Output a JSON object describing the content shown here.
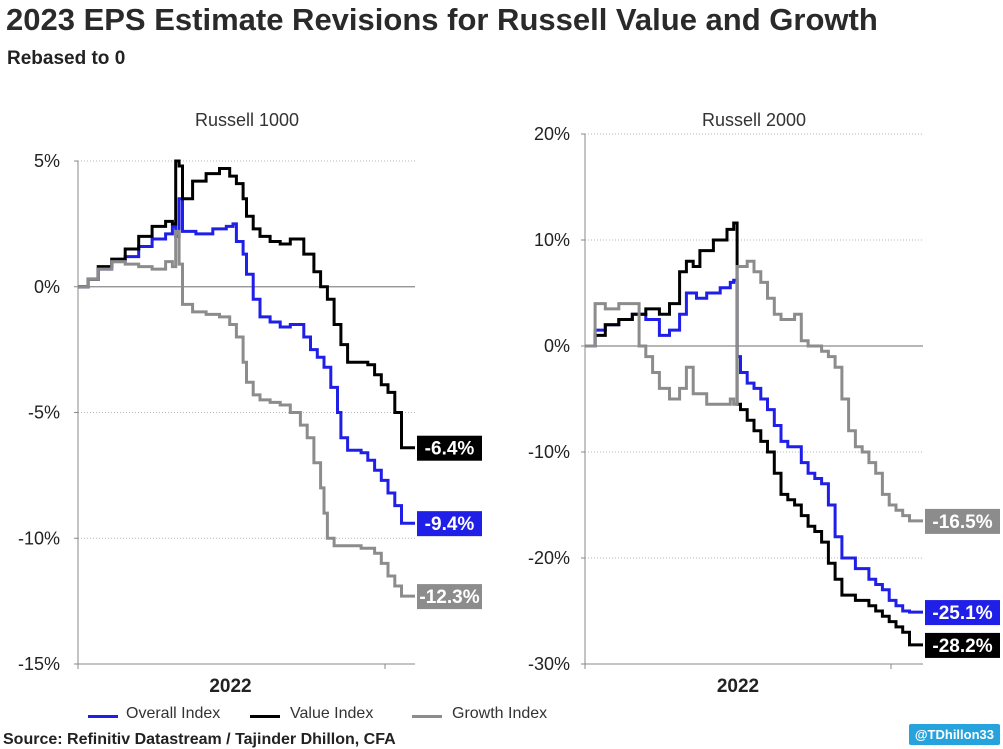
{
  "title": "2023 EPS Estimate Revisions for Russell Value and Growth",
  "subtitle": "Rebased to 0",
  "source": "Source: Refinitiv Datastream / Tajinder Dhillon, CFA",
  "handle": "@TDhillon33",
  "legend": [
    {
      "name": "Overall Index",
      "color": "#1f1fe8"
    },
    {
      "name": "Value Index",
      "color": "#000000"
    },
    {
      "name": "Growth Index",
      "color": "#8c8c8c"
    }
  ],
  "chart_data": [
    {
      "type": "line",
      "panel_title": "Russell 1000",
      "x_label": "2022",
      "x_range": [
        0,
        1
      ],
      "ylim": [
        -15,
        5
      ],
      "yticks": [
        5,
        0,
        -5,
        -10,
        -15
      ],
      "ytick_labels": [
        "5%",
        "0%",
        "-5%",
        "-10%",
        "-15%"
      ],
      "grid": "horizontal dotted",
      "zero_line": true,
      "series": [
        {
          "name": "Overall Index",
          "color": "#1f1fe8",
          "end_label": "-9.4%",
          "points": [
            [
              0,
              0
            ],
            [
              0.03,
              0.3
            ],
            [
              0.06,
              0.7
            ],
            [
              0.1,
              1.0
            ],
            [
              0.14,
              1.2
            ],
            [
              0.18,
              1.6
            ],
            [
              0.22,
              1.9
            ],
            [
              0.26,
              2.1
            ],
            [
              0.28,
              2.4
            ],
            [
              0.29,
              2.0
            ],
            [
              0.3,
              3.5
            ],
            [
              0.31,
              2.2
            ],
            [
              0.35,
              2.1
            ],
            [
              0.4,
              2.3
            ],
            [
              0.44,
              2.4
            ],
            [
              0.46,
              2.5
            ],
            [
              0.47,
              1.8
            ],
            [
              0.49,
              1.3
            ],
            [
              0.5,
              0.5
            ],
            [
              0.52,
              -0.5
            ],
            [
              0.54,
              -1.2
            ],
            [
              0.57,
              -1.4
            ],
            [
              0.6,
              -1.6
            ],
            [
              0.63,
              -1.5
            ],
            [
              0.66,
              -1.5
            ],
            [
              0.67,
              -2.0
            ],
            [
              0.69,
              -2.5
            ],
            [
              0.71,
              -2.8
            ],
            [
              0.73,
              -3.2
            ],
            [
              0.75,
              -4.0
            ],
            [
              0.77,
              -5.0
            ],
            [
              0.78,
              -6.0
            ],
            [
              0.8,
              -6.5
            ],
            [
              0.84,
              -6.6
            ],
            [
              0.86,
              -6.9
            ],
            [
              0.88,
              -7.3
            ],
            [
              0.9,
              -7.7
            ],
            [
              0.92,
              -8.2
            ],
            [
              0.94,
              -8.7
            ],
            [
              0.96,
              -9.4
            ],
            [
              1,
              -9.4
            ]
          ]
        },
        {
          "name": "Value Index",
          "color": "#000000",
          "end_label": "-6.4%",
          "points": [
            [
              0,
              0
            ],
            [
              0.03,
              0.3
            ],
            [
              0.06,
              0.8
            ],
            [
              0.1,
              1.1
            ],
            [
              0.14,
              1.5
            ],
            [
              0.18,
              2.0
            ],
            [
              0.22,
              2.4
            ],
            [
              0.26,
              2.6
            ],
            [
              0.28,
              2.5
            ],
            [
              0.29,
              5.0
            ],
            [
              0.3,
              4.8
            ],
            [
              0.31,
              3.5
            ],
            [
              0.34,
              4.2
            ],
            [
              0.38,
              4.5
            ],
            [
              0.42,
              4.7
            ],
            [
              0.45,
              4.4
            ],
            [
              0.47,
              4.1
            ],
            [
              0.49,
              3.5
            ],
            [
              0.5,
              2.8
            ],
            [
              0.52,
              2.3
            ],
            [
              0.54,
              2.0
            ],
            [
              0.57,
              1.8
            ],
            [
              0.6,
              1.7
            ],
            [
              0.63,
              1.9
            ],
            [
              0.66,
              1.9
            ],
            [
              0.67,
              1.3
            ],
            [
              0.7,
              0.6
            ],
            [
              0.72,
              0.0
            ],
            [
              0.74,
              -0.5
            ],
            [
              0.76,
              -1.5
            ],
            [
              0.78,
              -2.3
            ],
            [
              0.8,
              -3.0
            ],
            [
              0.84,
              -3.0
            ],
            [
              0.86,
              -3.1
            ],
            [
              0.88,
              -3.5
            ],
            [
              0.9,
              -3.9
            ],
            [
              0.92,
              -4.2
            ],
            [
              0.94,
              -5.0
            ],
            [
              0.96,
              -6.4
            ],
            [
              1,
              -6.4
            ]
          ]
        },
        {
          "name": "Growth Index",
          "color": "#8c8c8c",
          "end_label": "-12.3%",
          "points": [
            [
              0,
              0
            ],
            [
              0.03,
              0.3
            ],
            [
              0.06,
              0.7
            ],
            [
              0.1,
              1.0
            ],
            [
              0.14,
              0.9
            ],
            [
              0.18,
              0.8
            ],
            [
              0.22,
              0.7
            ],
            [
              0.26,
              1.0
            ],
            [
              0.28,
              0.8
            ],
            [
              0.29,
              2.2
            ],
            [
              0.3,
              0.9
            ],
            [
              0.31,
              -0.7
            ],
            [
              0.34,
              -1.0
            ],
            [
              0.38,
              -1.1
            ],
            [
              0.42,
              -1.2
            ],
            [
              0.45,
              -1.5
            ],
            [
              0.47,
              -2.0
            ],
            [
              0.49,
              -3.0
            ],
            [
              0.5,
              -3.8
            ],
            [
              0.52,
              -4.3
            ],
            [
              0.54,
              -4.5
            ],
            [
              0.57,
              -4.6
            ],
            [
              0.6,
              -4.7
            ],
            [
              0.63,
              -5.0
            ],
            [
              0.66,
              -5.5
            ],
            [
              0.68,
              -6.0
            ],
            [
              0.7,
              -7.0
            ],
            [
              0.72,
              -8.0
            ],
            [
              0.73,
              -9.0
            ],
            [
              0.74,
              -10.0
            ],
            [
              0.76,
              -10.3
            ],
            [
              0.8,
              -10.3
            ],
            [
              0.84,
              -10.4
            ],
            [
              0.88,
              -10.6
            ],
            [
              0.9,
              -11.0
            ],
            [
              0.92,
              -11.5
            ],
            [
              0.94,
              -11.9
            ],
            [
              0.96,
              -12.3
            ],
            [
              1,
              -12.3
            ]
          ]
        }
      ]
    },
    {
      "type": "line",
      "panel_title": "Russell 2000",
      "x_label": "2022",
      "x_range": [
        0,
        1
      ],
      "ylim": [
        -30,
        20
      ],
      "yticks": [
        20,
        10,
        0,
        -10,
        -20,
        -30
      ],
      "ytick_labels": [
        "20%",
        "10%",
        "0%",
        "-10%",
        "-20%",
        "-30%"
      ],
      "grid": "horizontal dotted",
      "zero_line": true,
      "series": [
        {
          "name": "Overall Index",
          "color": "#1f1fe8",
          "end_label": "-25.1%",
          "points": [
            [
              0,
              0
            ],
            [
              0.03,
              1.5
            ],
            [
              0.06,
              2.0
            ],
            [
              0.1,
              2.5
            ],
            [
              0.14,
              3.0
            ],
            [
              0.18,
              2.5
            ],
            [
              0.22,
              1.0
            ],
            [
              0.25,
              1.5
            ],
            [
              0.28,
              3.0
            ],
            [
              0.3,
              5.0
            ],
            [
              0.33,
              4.5
            ],
            [
              0.36,
              5.0
            ],
            [
              0.4,
              5.5
            ],
            [
              0.43,
              6.0
            ],
            [
              0.44,
              6.2
            ],
            [
              0.45,
              -1.0
            ],
            [
              0.46,
              -2.5
            ],
            [
              0.48,
              -3.5
            ],
            [
              0.5,
              -4.0
            ],
            [
              0.52,
              -5.0
            ],
            [
              0.54,
              -6.0
            ],
            [
              0.56,
              -7.5
            ],
            [
              0.58,
              -9.0
            ],
            [
              0.6,
              -9.5
            ],
            [
              0.62,
              -9.5
            ],
            [
              0.64,
              -11.0
            ],
            [
              0.66,
              -12.0
            ],
            [
              0.68,
              -12.5
            ],
            [
              0.7,
              -13.0
            ],
            [
              0.72,
              -15.0
            ],
            [
              0.74,
              -18.0
            ],
            [
              0.76,
              -20.0
            ],
            [
              0.8,
              -21.0
            ],
            [
              0.84,
              -22.0
            ],
            [
              0.86,
              -22.5
            ],
            [
              0.88,
              -23.0
            ],
            [
              0.9,
              -24.0
            ],
            [
              0.92,
              -24.5
            ],
            [
              0.94,
              -25.0
            ],
            [
              0.96,
              -25.1
            ],
            [
              1,
              -25.1
            ]
          ]
        },
        {
          "name": "Value Index",
          "color": "#000000",
          "end_label": "-28.2%",
          "points": [
            [
              0,
              0
            ],
            [
              0.03,
              1.0
            ],
            [
              0.06,
              2.0
            ],
            [
              0.1,
              2.5
            ],
            [
              0.14,
              3.0
            ],
            [
              0.18,
              3.5
            ],
            [
              0.22,
              3.0
            ],
            [
              0.25,
              4.0
            ],
            [
              0.28,
              7.0
            ],
            [
              0.3,
              8.0
            ],
            [
              0.32,
              7.5
            ],
            [
              0.34,
              9.0
            ],
            [
              0.38,
              10.0
            ],
            [
              0.42,
              11.0
            ],
            [
              0.44,
              11.6
            ],
            [
              0.45,
              -5.5
            ],
            [
              0.46,
              -6.0
            ],
            [
              0.48,
              -7.0
            ],
            [
              0.5,
              -8.0
            ],
            [
              0.52,
              -9.0
            ],
            [
              0.54,
              -10.0
            ],
            [
              0.56,
              -12.0
            ],
            [
              0.58,
              -14.0
            ],
            [
              0.6,
              -14.5
            ],
            [
              0.62,
              -15.0
            ],
            [
              0.64,
              -16.0
            ],
            [
              0.66,
              -17.0
            ],
            [
              0.68,
              -17.5
            ],
            [
              0.7,
              -18.5
            ],
            [
              0.72,
              -20.5
            ],
            [
              0.74,
              -22.0
            ],
            [
              0.76,
              -23.5
            ],
            [
              0.8,
              -24.0
            ],
            [
              0.84,
              -24.5
            ],
            [
              0.86,
              -25.0
            ],
            [
              0.88,
              -25.5
            ],
            [
              0.9,
              -26.0
            ],
            [
              0.92,
              -26.5
            ],
            [
              0.94,
              -27.0
            ],
            [
              0.96,
              -28.2
            ],
            [
              1,
              -28.2
            ]
          ]
        },
        {
          "name": "Growth Index",
          "color": "#8c8c8c",
          "end_label": "-16.5%",
          "points": [
            [
              0,
              0
            ],
            [
              0.03,
              4.0
            ],
            [
              0.06,
              3.5
            ],
            [
              0.1,
              4.0
            ],
            [
              0.14,
              4.0
            ],
            [
              0.16,
              0.0
            ],
            [
              0.18,
              -1.0
            ],
            [
              0.2,
              -2.5
            ],
            [
              0.22,
              -4.0
            ],
            [
              0.25,
              -5.0
            ],
            [
              0.28,
              -4.0
            ],
            [
              0.3,
              -2.0
            ],
            [
              0.32,
              -4.5
            ],
            [
              0.36,
              -5.5
            ],
            [
              0.4,
              -5.5
            ],
            [
              0.43,
              -5.0
            ],
            [
              0.44,
              -5.5
            ],
            [
              0.45,
              7.5
            ],
            [
              0.48,
              8.0
            ],
            [
              0.5,
              7.0
            ],
            [
              0.52,
              6.0
            ],
            [
              0.54,
              4.5
            ],
            [
              0.56,
              3.0
            ],
            [
              0.58,
              2.5
            ],
            [
              0.62,
              3.0
            ],
            [
              0.64,
              0.5
            ],
            [
              0.66,
              0.0
            ],
            [
              0.7,
              -0.5
            ],
            [
              0.72,
              -1.0
            ],
            [
              0.74,
              -2.0
            ],
            [
              0.76,
              -5.0
            ],
            [
              0.78,
              -8.0
            ],
            [
              0.8,
              -9.5
            ],
            [
              0.82,
              -10.0
            ],
            [
              0.84,
              -11.0
            ],
            [
              0.86,
              -12.0
            ],
            [
              0.88,
              -14.0
            ],
            [
              0.9,
              -15.0
            ],
            [
              0.92,
              -15.5
            ],
            [
              0.94,
              -16.0
            ],
            [
              0.96,
              -16.5
            ],
            [
              1,
              -16.5
            ]
          ]
        }
      ]
    }
  ]
}
